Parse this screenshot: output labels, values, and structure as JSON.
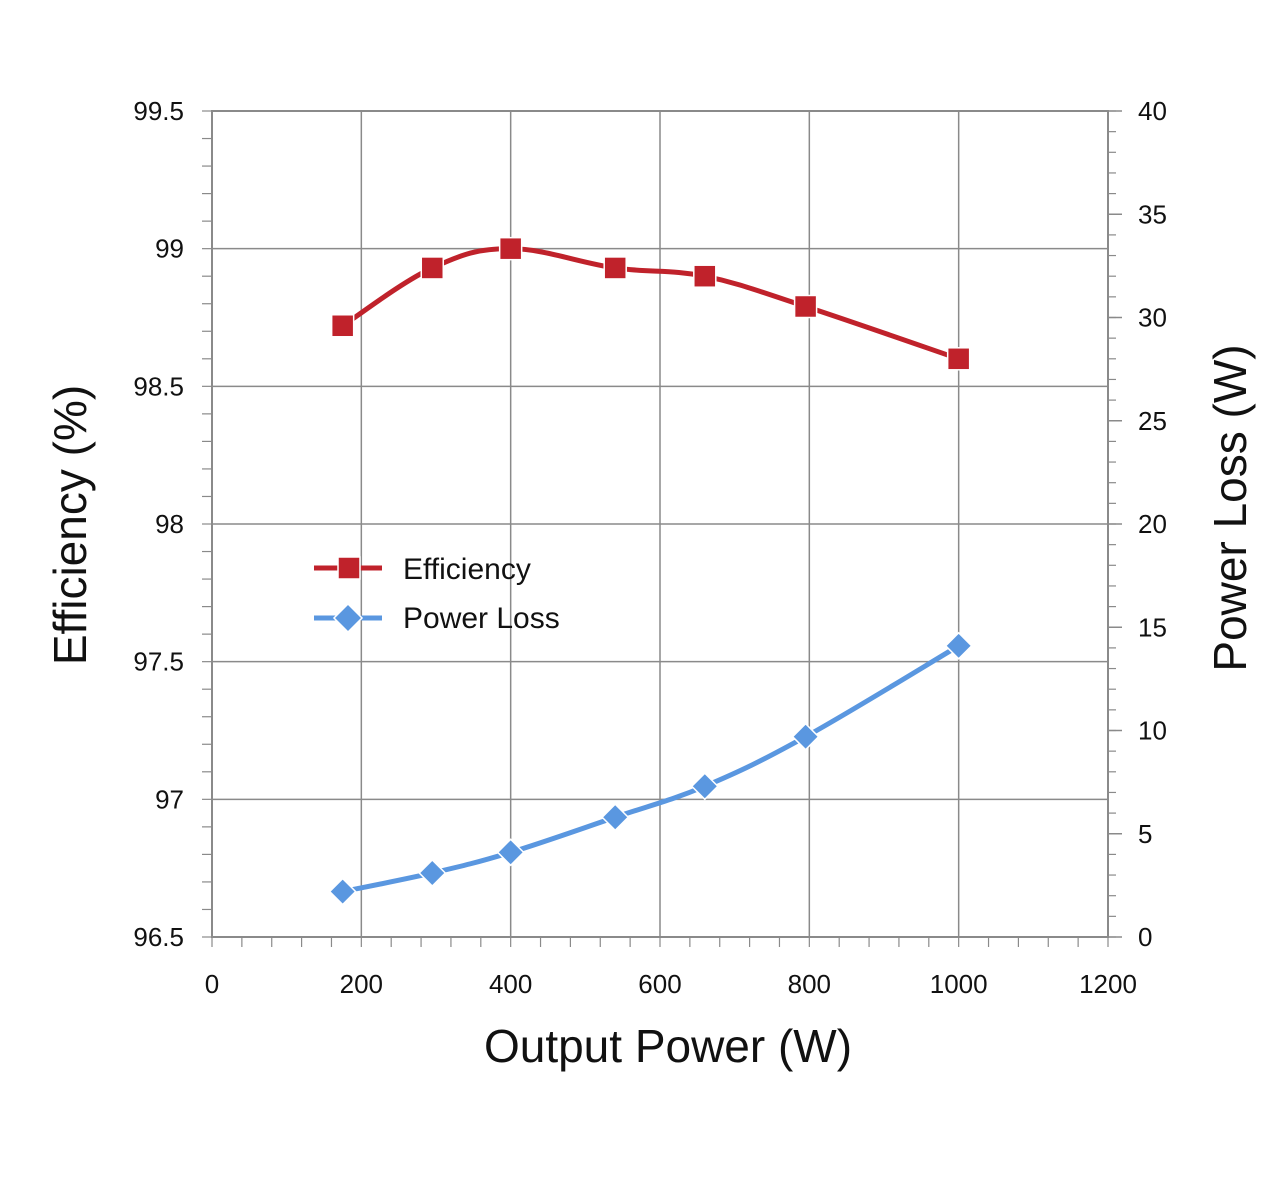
{
  "chart_data": {
    "type": "line",
    "xlabel": "Output Power (W)",
    "ylabel_left": "Efficiency (%)",
    "ylabel_right": "Power Loss (W)",
    "xlim": [
      0,
      1200
    ],
    "ylim_left": [
      96.5,
      99.5
    ],
    "ylim_right": [
      0,
      40
    ],
    "x_ticks": [
      "0",
      "200",
      "400",
      "600",
      "800",
      "1000",
      "1200"
    ],
    "y_left_ticks": [
      "96.5",
      "97",
      "97.5",
      "98",
      "98.5",
      "99",
      "99.5"
    ],
    "y_right_ticks": [
      "0",
      "5",
      "10",
      "15",
      "20",
      "25",
      "30",
      "35",
      "40"
    ],
    "grid": true,
    "legend_position": "center-left",
    "series": [
      {
        "name": "Efficiency",
        "axis": "left",
        "marker": "square",
        "color": "#c0222b",
        "x": [
          175,
          295,
          400,
          540,
          660,
          795,
          1000
        ],
        "y": [
          98.72,
          98.93,
          99.0,
          98.93,
          98.9,
          98.79,
          98.6
        ]
      },
      {
        "name": "Power Loss",
        "axis": "right",
        "marker": "diamond",
        "color": "#5a97e0",
        "x": [
          175,
          295,
          400,
          540,
          660,
          795,
          1000
        ],
        "y": [
          2.2,
          3.1,
          4.1,
          5.8,
          7.3,
          9.7,
          14.1
        ]
      }
    ]
  }
}
